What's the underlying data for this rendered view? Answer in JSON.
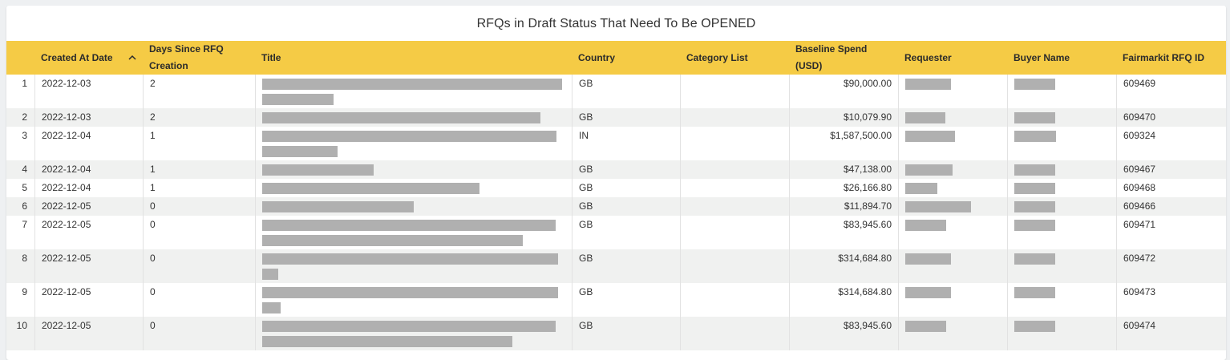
{
  "title": "RFQs in Draft Status That Need To Be OPENED",
  "columns": [
    {
      "key": "rn",
      "label": ""
    },
    {
      "key": "created",
      "label": "Created At Date"
    },
    {
      "key": "days",
      "label": "Days Since RFQ Creation"
    },
    {
      "key": "title",
      "label": "Title"
    },
    {
      "key": "country",
      "label": "Country"
    },
    {
      "key": "category",
      "label": "Category List"
    },
    {
      "key": "spend",
      "label": "Baseline Spend (USD)"
    },
    {
      "key": "requester",
      "label": "Requester"
    },
    {
      "key": "buyer",
      "label": "Buyer Name"
    },
    {
      "key": "rfqid",
      "label": "Fairmarkit RFQ ID"
    }
  ],
  "sort": {
    "column": "created",
    "direction": "asc",
    "icon": "chevron-up-icon"
  },
  "redaction_color": "#b0b0b0",
  "header_color": "#f5cb45",
  "rows": [
    {
      "rn": "1",
      "created": "2022-12-03",
      "days": "2",
      "country": "GB",
      "category": "",
      "spend": "$90,000.00",
      "rfqid": "609469"
    },
    {
      "rn": "2",
      "created": "2022-12-03",
      "days": "2",
      "country": "GB",
      "category": "",
      "spend": "$10,079.90",
      "rfqid": "609470"
    },
    {
      "rn": "3",
      "created": "2022-12-04",
      "days": "1",
      "country": "IN",
      "category": "",
      "spend": "$1,587,500.00",
      "rfqid": "609324"
    },
    {
      "rn": "4",
      "created": "2022-12-04",
      "days": "1",
      "country": "GB",
      "category": "",
      "spend": "$47,138.00",
      "rfqid": "609467"
    },
    {
      "rn": "5",
      "created": "2022-12-04",
      "days": "1",
      "country": "GB",
      "category": "",
      "spend": "$26,166.80",
      "rfqid": "609468"
    },
    {
      "rn": "6",
      "created": "2022-12-05",
      "days": "0",
      "country": "GB",
      "category": "",
      "spend": "$11,894.70",
      "rfqid": "609466"
    },
    {
      "rn": "7",
      "created": "2022-12-05",
      "days": "0",
      "country": "GB",
      "category": "",
      "spend": "$83,945.60",
      "rfqid": "609471"
    },
    {
      "rn": "8",
      "created": "2022-12-05",
      "days": "0",
      "country": "GB",
      "category": "",
      "spend": "$314,684.80",
      "rfqid": "609472"
    },
    {
      "rn": "9",
      "created": "2022-12-05",
      "days": "0",
      "country": "GB",
      "category": "",
      "spend": "$314,684.80",
      "rfqid": "609473"
    },
    {
      "rn": "10",
      "created": "2022-12-05",
      "days": "0",
      "country": "GB",
      "category": "",
      "spend": "$83,945.60",
      "rfqid": "609474"
    }
  ]
}
